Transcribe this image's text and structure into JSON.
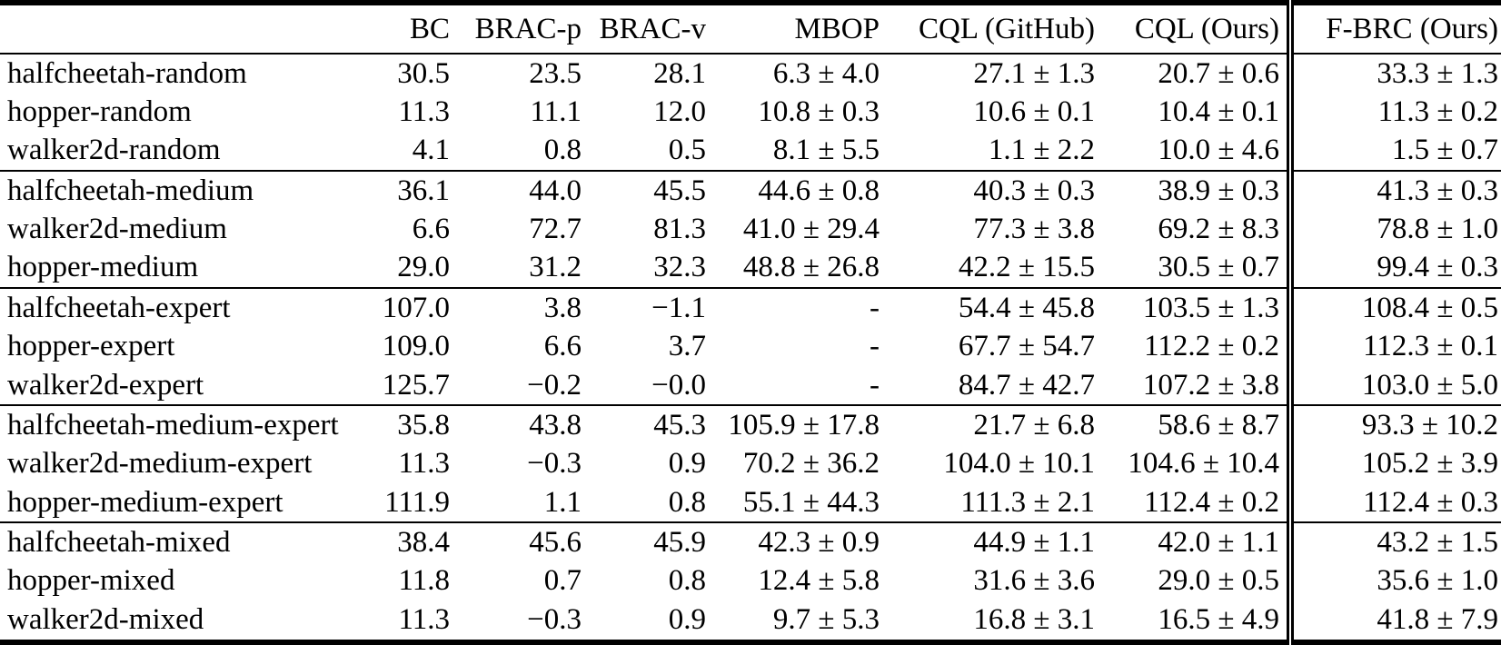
{
  "table": {
    "columns": [
      "",
      "BC",
      "BRAC-p",
      "BRAC-v",
      "MBOP",
      "CQL (GitHub)",
      "CQL (Ours)",
      "F-BRC (Ours)"
    ],
    "groups": [
      {
        "name": "random",
        "rows": [
          {
            "label": "halfcheetah-random",
            "values": [
              "30.5",
              "23.5",
              "28.1",
              "6.3 ± 4.0",
              "27.1 ± 1.3",
              "20.7 ± 0.6",
              "33.3 ± 1.3"
            ]
          },
          {
            "label": "hopper-random",
            "values": [
              "11.3",
              "11.1",
              "12.0",
              "10.8 ± 0.3",
              "10.6 ± 0.1",
              "10.4 ± 0.1",
              "11.3 ± 0.2"
            ]
          },
          {
            "label": "walker2d-random",
            "values": [
              "4.1",
              "0.8",
              "0.5",
              "8.1 ± 5.5",
              "1.1 ± 2.2",
              "10.0 ± 4.6",
              "1.5 ± 0.7"
            ]
          }
        ]
      },
      {
        "name": "medium",
        "rows": [
          {
            "label": "halfcheetah-medium",
            "values": [
              "36.1",
              "44.0",
              "45.5",
              "44.6 ± 0.8",
              "40.3 ± 0.3",
              "38.9 ± 0.3",
              "41.3 ± 0.3"
            ]
          },
          {
            "label": "walker2d-medium",
            "values": [
              "6.6",
              "72.7",
              "81.3",
              "41.0 ± 29.4",
              "77.3 ± 3.8",
              "69.2 ± 8.3",
              "78.8 ± 1.0"
            ]
          },
          {
            "label": "hopper-medium",
            "values": [
              "29.0",
              "31.2",
              "32.3",
              "48.8 ± 26.8",
              "42.2 ± 15.5",
              "30.5 ± 0.7",
              "99.4 ± 0.3"
            ]
          }
        ]
      },
      {
        "name": "expert",
        "rows": [
          {
            "label": "halfcheetah-expert",
            "values": [
              "107.0",
              "3.8",
              "−1.1",
              "-",
              "54.4 ± 45.8",
              "103.5 ± 1.3",
              "108.4 ± 0.5"
            ]
          },
          {
            "label": "hopper-expert",
            "values": [
              "109.0",
              "6.6",
              "3.7",
              "-",
              "67.7 ± 54.7",
              "112.2 ± 0.2",
              "112.3 ± 0.1"
            ]
          },
          {
            "label": "walker2d-expert",
            "values": [
              "125.7",
              "−0.2",
              "−0.0",
              "-",
              "84.7 ± 42.7",
              "107.2 ± 3.8",
              "103.0 ± 5.0"
            ]
          }
        ]
      },
      {
        "name": "medium-expert",
        "rows": [
          {
            "label": "halfcheetah-medium-expert",
            "values": [
              "35.8",
              "43.8",
              "45.3",
              "105.9 ± 17.8",
              "21.7 ± 6.8",
              "58.6 ± 8.7",
              "93.3 ± 10.2"
            ]
          },
          {
            "label": "walker2d-medium-expert",
            "values": [
              "11.3",
              "−0.3",
              "0.9",
              "70.2 ± 36.2",
              "104.0 ± 10.1",
              "104.6 ± 10.4",
              "105.2 ± 3.9"
            ]
          },
          {
            "label": "hopper-medium-expert",
            "values": [
              "111.9",
              "1.1",
              "0.8",
              "55.1 ± 44.3",
              "111.3 ± 2.1",
              "112.4 ± 0.2",
              "112.4 ± 0.3"
            ]
          }
        ]
      },
      {
        "name": "mixed",
        "rows": [
          {
            "label": "halfcheetah-mixed",
            "values": [
              "38.4",
              "45.6",
              "45.9",
              "42.3 ± 0.9",
              "44.9 ± 1.1",
              "42.0 ± 1.1",
              "43.2 ± 1.5"
            ]
          },
          {
            "label": "hopper-mixed",
            "values": [
              "11.8",
              "0.7",
              "0.8",
              "12.4 ± 5.8",
              "31.6 ± 3.6",
              "29.0 ± 0.5",
              "35.6 ± 1.0"
            ]
          },
          {
            "label": "walker2d-mixed",
            "values": [
              "11.3",
              "−0.3",
              "0.9",
              "9.7 ± 5.3",
              "16.8 ± 3.1",
              "16.5 ± 4.9",
              "41.8 ± 7.9"
            ]
          }
        ]
      }
    ]
  }
}
